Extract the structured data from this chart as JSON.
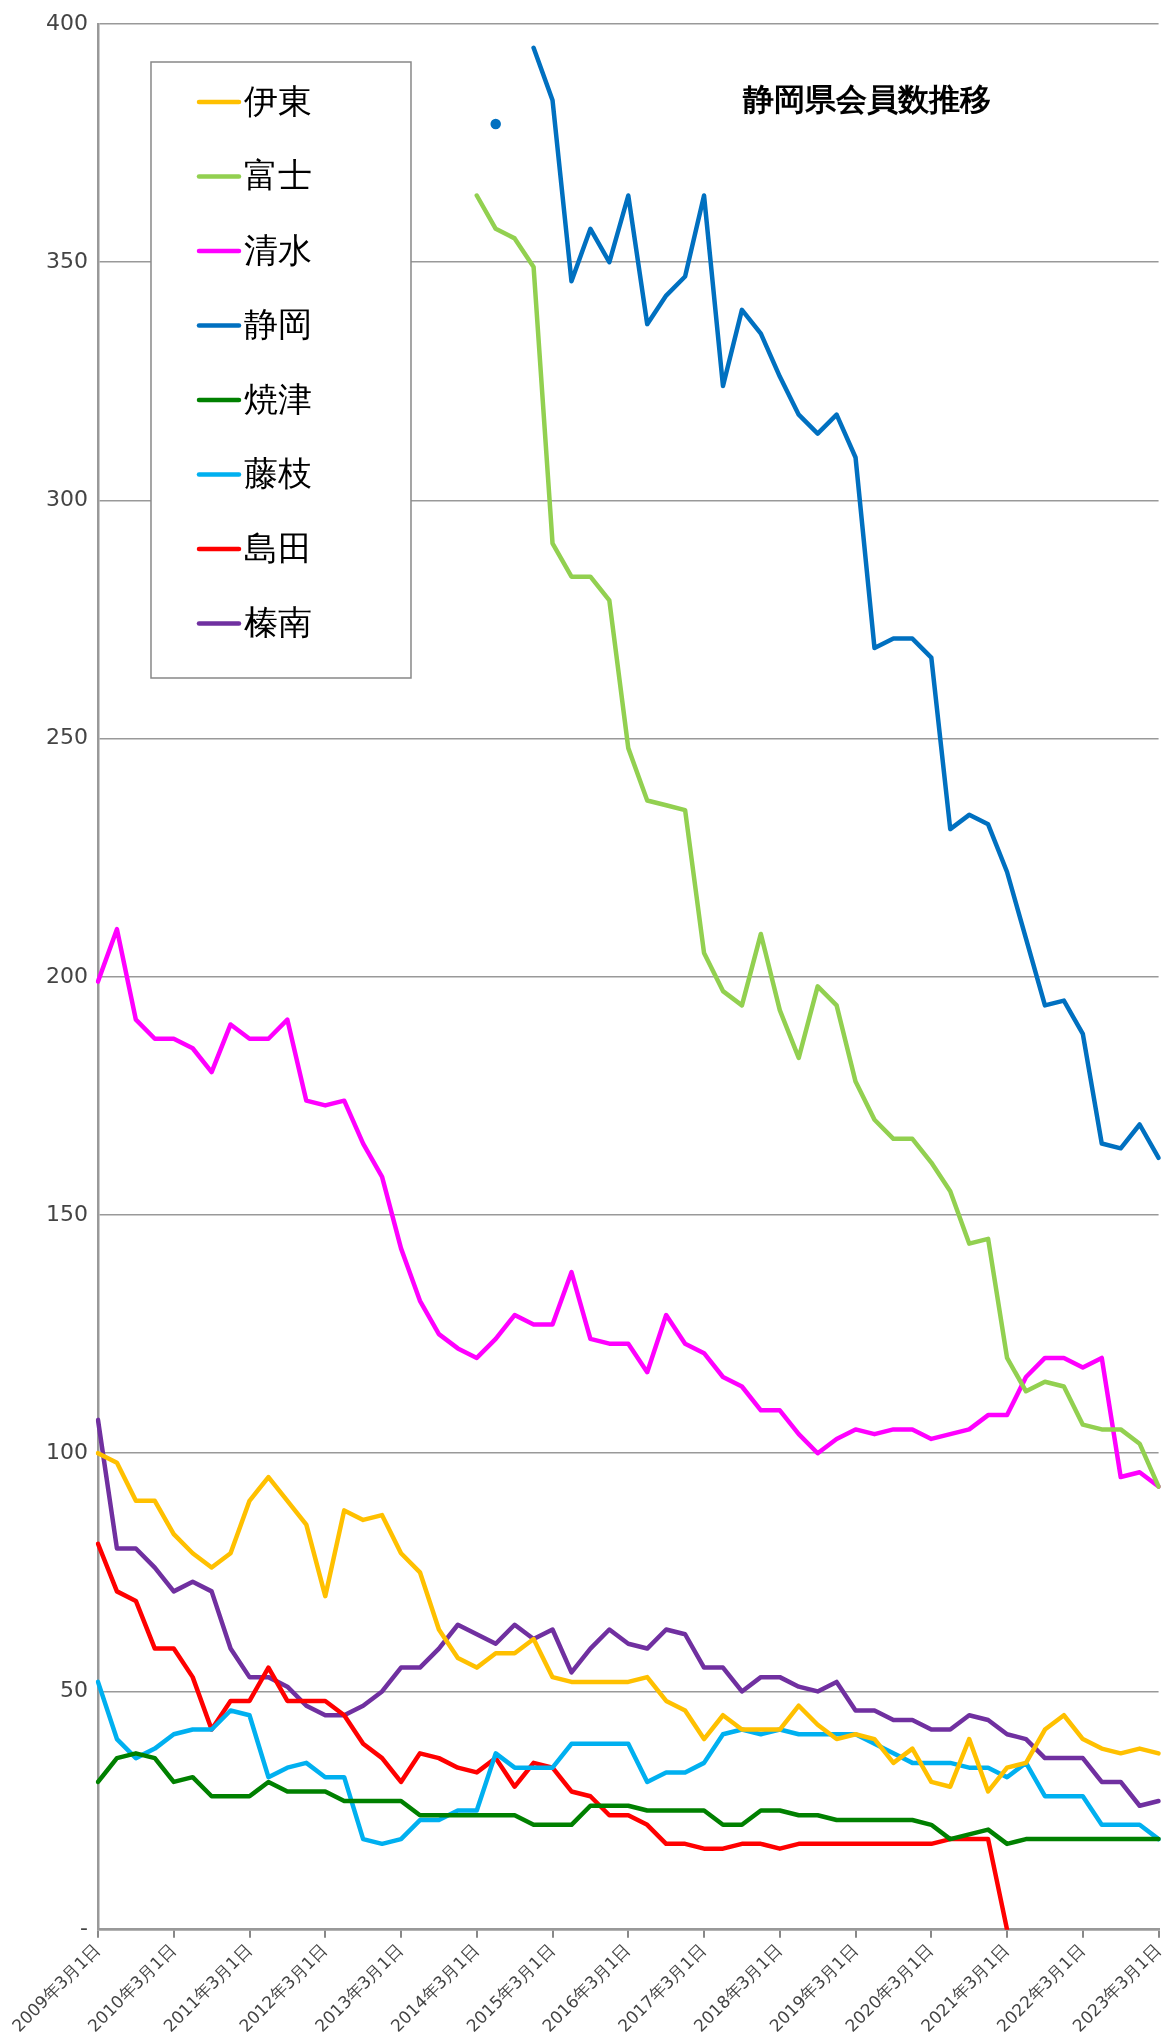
{
  "chart_data": {
    "type": "line",
    "title": "静岡県会員数推移",
    "categories": [
      "2009年3月1日",
      null,
      null,
      null,
      "2010年3月1日",
      null,
      null,
      null,
      "2011年3月1日",
      null,
      null,
      null,
      "2012年3月1日",
      null,
      null,
      null,
      "2013年3月1日",
      null,
      null,
      null,
      "2014年3月1日",
      null,
      null,
      null,
      "2015年3月1日",
      null,
      null,
      null,
      "2016年3月1日",
      null,
      null,
      null,
      "2017年3月1日",
      null,
      null,
      null,
      "2018年3月1日",
      null,
      null,
      null,
      "2019年3月1日",
      null,
      null,
      null,
      "2020年3月1日",
      null,
      null,
      null,
      "2021年3月1日",
      null,
      null,
      null,
      "2022年3月1日",
      null,
      null,
      null,
      "2023年3月1日"
    ],
    "series": [
      {
        "name": "伊東",
        "color": "#ffc000",
        "values": [
          100,
          98,
          90,
          90,
          83,
          79,
          76,
          79,
          90,
          95,
          90,
          85,
          70,
          88,
          86,
          87,
          79,
          75,
          63,
          57,
          55,
          58,
          58,
          61,
          53,
          52,
          52,
          52,
          52,
          53,
          48,
          46,
          40,
          45,
          42,
          42,
          42,
          47,
          43,
          40,
          41,
          40,
          35,
          38,
          31,
          30,
          40,
          29,
          34,
          35,
          42,
          45,
          40,
          38,
          37,
          38,
          37
        ]
      },
      {
        "name": "富士",
        "color": "#92d050",
        "values": [
          null,
          null,
          null,
          null,
          null,
          null,
          null,
          null,
          null,
          null,
          null,
          null,
          null,
          null,
          null,
          null,
          null,
          null,
          null,
          null,
          364,
          357,
          355,
          349,
          291,
          284,
          284,
          279,
          248,
          237,
          236,
          235,
          205,
          197,
          194,
          209,
          193,
          183,
          198,
          194,
          178,
          170,
          166,
          166,
          161,
          155,
          144,
          145,
          120,
          113,
          115,
          114,
          106,
          105,
          105,
          102,
          93
        ]
      },
      {
        "name": "清水",
        "color": "#ff00ff",
        "values": [
          199,
          210,
          191,
          187,
          187,
          185,
          180,
          190,
          187,
          187,
          191,
          174,
          173,
          174,
          165,
          158,
          143,
          132,
          125,
          122,
          120,
          124,
          129,
          127,
          127,
          138,
          124,
          123,
          123,
          117,
          129,
          123,
          121,
          116,
          114,
          109,
          109,
          104,
          100,
          103,
          105,
          104,
          105,
          105,
          103,
          104,
          105,
          108,
          108,
          116,
          120,
          120,
          118,
          120,
          95,
          96,
          93
        ]
      },
      {
        "name": "静岡",
        "color": "#0070c0",
        "values": [
          null,
          null,
          null,
          null,
          null,
          null,
          null,
          null,
          null,
          null,
          null,
          null,
          null,
          null,
          null,
          null,
          null,
          null,
          null,
          null,
          null,
          379,
          null,
          395,
          384,
          346,
          357,
          350,
          364,
          337,
          343,
          347,
          364,
          324,
          340,
          335,
          326,
          318,
          314,
          318,
          309,
          269,
          271,
          271,
          267,
          231,
          234,
          232,
          222,
          208,
          194,
          195,
          188,
          165,
          164,
          169,
          162
        ]
      },
      {
        "name": "焼津",
        "color": "#008000",
        "values": [
          31,
          36,
          37,
          36,
          31,
          32,
          28,
          28,
          28,
          31,
          29,
          29,
          29,
          27,
          27,
          27,
          27,
          24,
          24,
          24,
          24,
          24,
          24,
          22,
          22,
          22,
          26,
          26,
          26,
          25,
          25,
          25,
          25,
          22,
          22,
          25,
          25,
          24,
          24,
          23,
          23,
          23,
          23,
          23,
          22,
          19,
          20,
          21,
          18,
          19,
          19,
          19,
          19,
          19,
          19,
          19,
          19
        ]
      },
      {
        "name": "藤枝",
        "color": "#00b0f0",
        "values": [
          52,
          40,
          36,
          38,
          41,
          42,
          42,
          46,
          45,
          32,
          34,
          35,
          32,
          32,
          19,
          18,
          19,
          23,
          23,
          25,
          25,
          37,
          34,
          34,
          34,
          39,
          39,
          39,
          39,
          31,
          33,
          33,
          35,
          41,
          42,
          41,
          42,
          41,
          41,
          41,
          41,
          39,
          37,
          35,
          35,
          35,
          34,
          34,
          32,
          35,
          28,
          28,
          28,
          22,
          22,
          22,
          19
        ]
      },
      {
        "name": "島田",
        "color": "#ff0000",
        "values": [
          81,
          71,
          69,
          59,
          59,
          53,
          42,
          48,
          48,
          55,
          48,
          48,
          48,
          45,
          39,
          36,
          31,
          37,
          36,
          34,
          33,
          36,
          30,
          35,
          34,
          29,
          28,
          24,
          24,
          22,
          18,
          18,
          17,
          17,
          18,
          18,
          17,
          18,
          18,
          18,
          18,
          18,
          18,
          18,
          18,
          19,
          19,
          19,
          0,
          null,
          null,
          null,
          null,
          null,
          null,
          null,
          null
        ]
      },
      {
        "name": "榛南",
        "color": "#7030a0",
        "values": [
          107,
          80,
          80,
          76,
          71,
          73,
          71,
          59,
          53,
          53,
          51,
          47,
          45,
          45,
          47,
          50,
          55,
          55,
          59,
          64,
          62,
          60,
          64,
          61,
          63,
          54,
          59,
          63,
          60,
          59,
          63,
          62,
          55,
          55,
          50,
          53,
          53,
          51,
          50,
          52,
          46,
          46,
          44,
          44,
          42,
          42,
          45,
          44,
          41,
          40,
          36,
          36,
          36,
          31,
          31,
          26,
          27
        ]
      }
    ],
    "ylim": [
      0,
      400
    ],
    "yticks": [
      {
        "value": 0,
        "label": "-"
      },
      50,
      100,
      150,
      200,
      250,
      300,
      350,
      400
    ],
    "grid": "y",
    "legend": "top left",
    "marker": "none",
    "line_style": "solid"
  }
}
